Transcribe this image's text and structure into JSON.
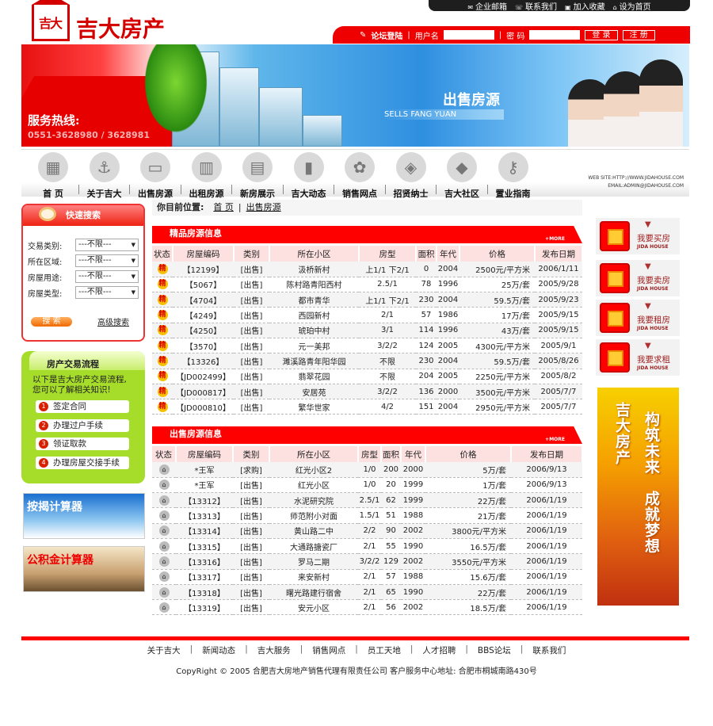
{
  "topbar": {
    "items": [
      {
        "icon": "mail-icon",
        "label": "企业邮箱"
      },
      {
        "icon": "contact-icon",
        "label": "联系我们"
      },
      {
        "icon": "bookmark-icon",
        "label": "加入收藏"
      },
      {
        "icon": "home-icon",
        "label": "设为首页"
      }
    ]
  },
  "logo": {
    "mark": "吉大",
    "name": "吉大房产"
  },
  "login": {
    "title": "论坛登陆",
    "username_label": "用户名",
    "password_label": "密 码",
    "login_button": "登 录",
    "register_button": "注 册"
  },
  "banner": {
    "hotline_label": "服务热线:",
    "hotline": "0551-3628980 / 3628981",
    "title": "出售房源",
    "subtitle": "SELLS FANG YUAN"
  },
  "nav": {
    "items": [
      {
        "label": "首 页",
        "icon": "home-icon"
      },
      {
        "label": "关于吉大",
        "icon": "anchor-icon"
      },
      {
        "label": "出售房源",
        "icon": "laptop-icon"
      },
      {
        "label": "出租房源",
        "icon": "building-icon"
      },
      {
        "label": "新房展示",
        "icon": "tower-icon"
      },
      {
        "label": "吉大动态",
        "icon": "bar-chart-icon"
      },
      {
        "label": "销售网点",
        "icon": "network-icon"
      },
      {
        "label": "招贤纳士",
        "icon": "layers-icon"
      },
      {
        "label": "吉大社区",
        "icon": "stack-icon"
      },
      {
        "label": "置业指南",
        "icon": "keys-icon"
      }
    ],
    "website": "WEB SITE:HTTP://WWW.JIDAHOUSE.COM",
    "email": "EMAIL:ADMIN@JIDAHOUSE.COM"
  },
  "quick_search": {
    "title": "快速搜索",
    "fields": [
      {
        "label": "交易类别:",
        "value": "---不限---"
      },
      {
        "label": "所在区域:",
        "value": "---不限---"
      },
      {
        "label": "房屋用途:",
        "value": "---不限---"
      },
      {
        "label": "房屋类型:",
        "value": "---不限---"
      }
    ],
    "search_button": "搜 索",
    "advanced": "高级搜索"
  },
  "flow": {
    "title": "房产交易流程",
    "intro1": "以下是吉大房产交易流程,",
    "intro2": "您可以了解相关知识!",
    "steps": [
      "签定合同",
      "办理过户手续",
      "领证取款",
      "办理房屋交接手续"
    ]
  },
  "calculators": [
    "按揭计算器",
    "公积金计算器"
  ],
  "breadcrumb": {
    "label": "你目前位置:",
    "home": "首 页",
    "current": "出售房源"
  },
  "columns": [
    "状态",
    "房屋编码",
    "类别",
    "所在小区",
    "房型",
    "面积",
    "年代",
    "价格",
    "发布日期"
  ],
  "featured": {
    "title": "精品房源信息",
    "more": "+MORE",
    "badge": "精",
    "rows": [
      [
        "【12199】",
        "[出售]",
        "汲桥新村",
        "上1/1 下2/1",
        "0",
        "2004",
        "2500元/平方米",
        "2006/1/11"
      ],
      [
        "【5067】",
        "[出售]",
        "陈村路青阳西村",
        "2.5/1",
        "78",
        "1996",
        "25万/套",
        "2005/9/28"
      ],
      [
        "【4704】",
        "[出售]",
        "都市青华",
        "上1/1 下2/1",
        "230",
        "2004",
        "59.5万/套",
        "2005/9/23"
      ],
      [
        "【4249】",
        "[出售]",
        "西园新村",
        "2/1",
        "57",
        "1986",
        "17万/套",
        "2005/9/15"
      ],
      [
        "【4250】",
        "[出售]",
        "琥珀中村",
        "3/1",
        "114",
        "1996",
        "43万/套",
        "2005/9/15"
      ],
      [
        "【3570】",
        "[出售]",
        "元一美邦",
        "3/2/2",
        "124",
        "2005",
        "4300元/平方米",
        "2005/9/1"
      ],
      [
        "【13326】",
        "[出售]",
        "濉溪路青年阳华园",
        "不限",
        "230",
        "2004",
        "59.5万/套",
        "2005/8/26"
      ],
      [
        "【JD002499】",
        "[出售]",
        "翡翠花园",
        "不限",
        "204",
        "2005",
        "2250元/平方米",
        "2005/8/2"
      ],
      [
        "【JD000817】",
        "[出售]",
        "安居苑",
        "3/2/2",
        "136",
        "2000",
        "3500元/平方米",
        "2005/7/7"
      ],
      [
        "【JD000810】",
        "[出售]",
        "繁华世家",
        "4/2",
        "151",
        "2004",
        "2950元/平方米",
        "2005/7/7"
      ]
    ]
  },
  "sale": {
    "title": "出售房源信息",
    "more": "+MORE",
    "rows": [
      [
        "*王军",
        "[求购]",
        "红光小区2",
        "1/0",
        "200",
        "2000",
        "5万/套",
        "2006/9/13"
      ],
      [
        "*王军",
        "[出售]",
        "红光小区",
        "1/0",
        "20",
        "1999",
        "1万/套",
        "2006/9/13"
      ],
      [
        "【13312】",
        "[出售]",
        "水泥研究院",
        "2.5/1",
        "62",
        "1999",
        "22万/套",
        "2006/1/19"
      ],
      [
        "【13313】",
        "[出售]",
        "师范附小对面",
        "1.5/1",
        "51",
        "1988",
        "21万/套",
        "2006/1/19"
      ],
      [
        "【13314】",
        "[出售]",
        "黄山路二中",
        "2/2",
        "90",
        "2002",
        "3800元/平方米",
        "2006/1/19"
      ],
      [
        "【13315】",
        "[出售]",
        "大通路搪瓷厂",
        "2/1",
        "55",
        "1990",
        "16.5万/套",
        "2006/1/19"
      ],
      [
        "【13316】",
        "[出售]",
        "罗马二期",
        "3/2/2",
        "129",
        "2002",
        "3550元/平方米",
        "2006/1/19"
      ],
      [
        "【13317】",
        "[出售]",
        "来安新村",
        "2/1",
        "57",
        "1988",
        "15.6万/套",
        "2006/1/19"
      ],
      [
        "【13318】",
        "[出售]",
        "曙光路建行宿舍",
        "2/1",
        "65",
        "1990",
        "22万/套",
        "2006/1/19"
      ],
      [
        "【13319】",
        "[出售]",
        "安元小区",
        "2/1",
        "56",
        "2002",
        "18.5万/套",
        "2006/1/19"
      ]
    ]
  },
  "right_buttons": [
    {
      "label": "我要买房",
      "en": "JIDA HOUSE"
    },
    {
      "label": "我要卖房",
      "en": "JIDA HOUSE"
    },
    {
      "label": "我要租房",
      "en": "JIDA HOUSE"
    },
    {
      "label": "我要求租",
      "en": "JIDA HOUSE"
    }
  ],
  "promo": {
    "line1": "吉大房产",
    "line2": "构筑未来",
    "line3": "成就梦想"
  },
  "footer": {
    "links": [
      "关于吉大",
      "新闻动态",
      "吉大服务",
      "销售网点",
      "员工天地",
      "人才招聘",
      "BBS论坛",
      "联系我们"
    ],
    "copyright": "CopyRight © 2005 合肥吉大房地产销售代理有限责任公司 客户服务中心地址: 合肥市桐城南路430号"
  },
  "colors": {
    "brand_red": "#ff0000",
    "flow_green": "#a6dc2a",
    "header_pink": "#fde0e0"
  }
}
